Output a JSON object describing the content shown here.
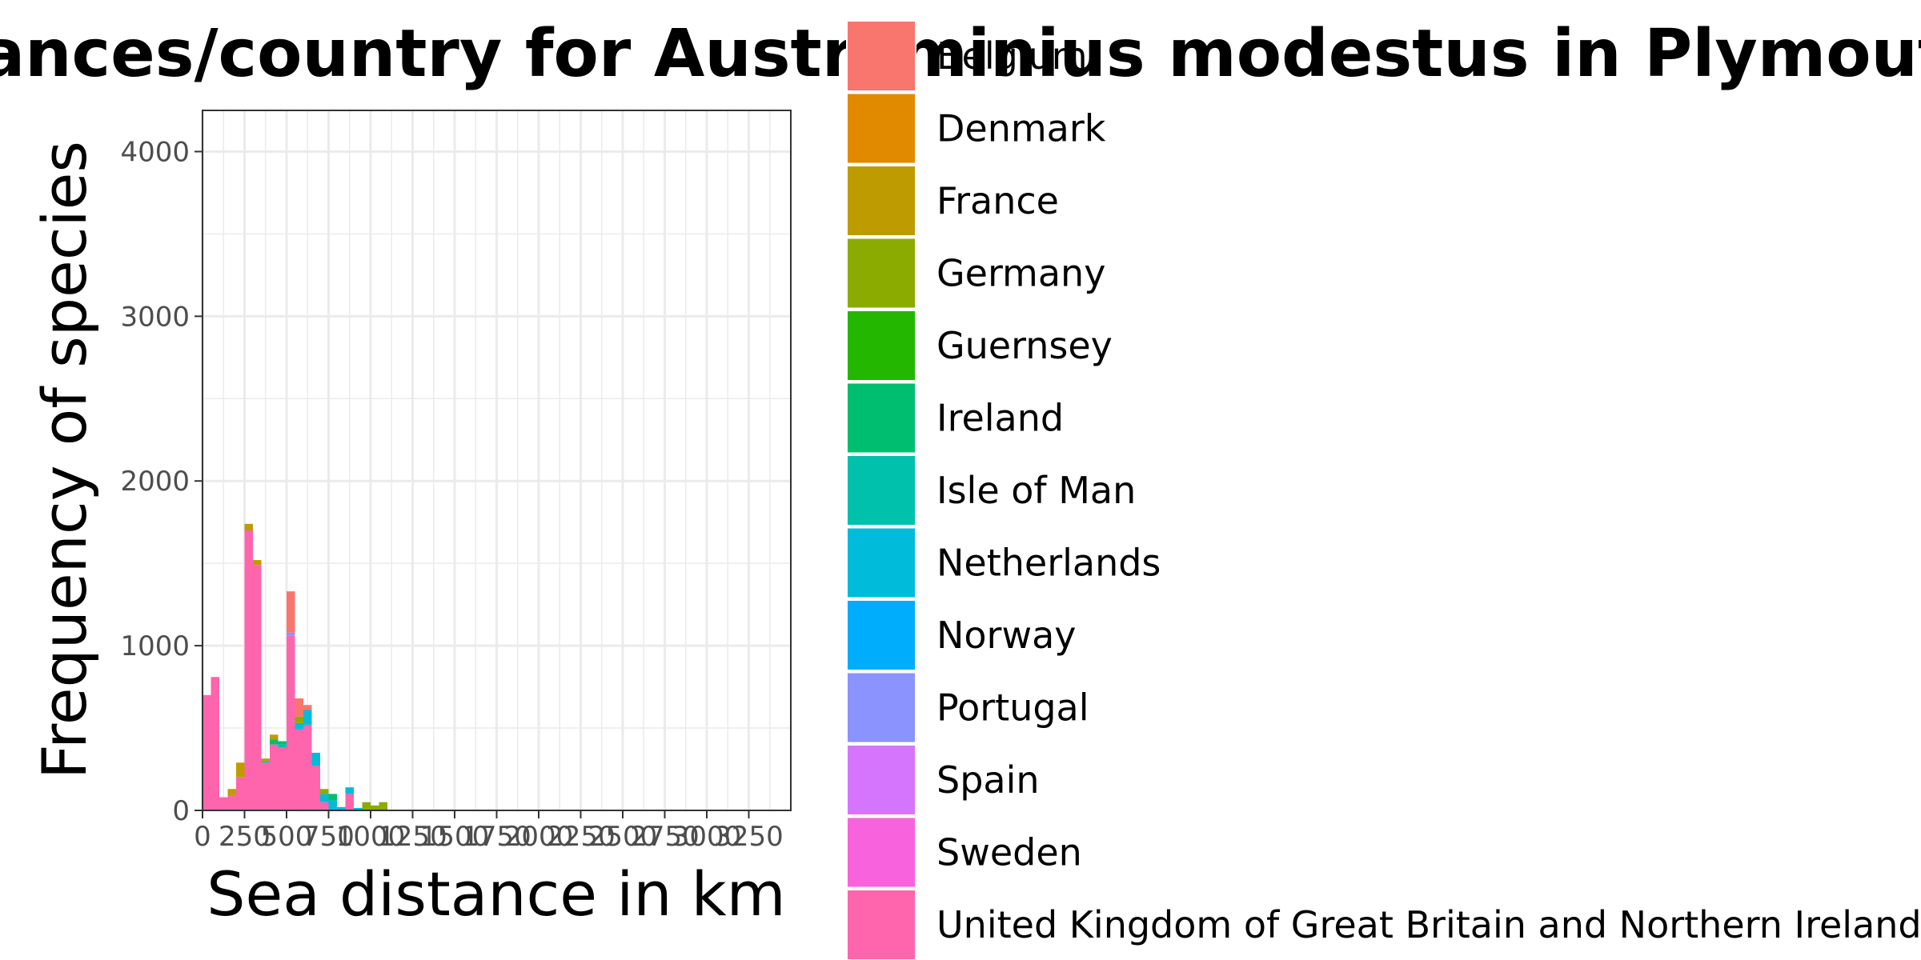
{
  "chart_data": {
    "type": "bar",
    "stacked": true,
    "title": "Sea distances/country for Austrominius modestus in Plymouth",
    "xlabel": "Sea distance in km",
    "ylabel": "Frequency of species",
    "xlim": [
      0,
      3500
    ],
    "ylim": [
      0,
      4250
    ],
    "x_ticks": [
      "0",
      "250",
      "500",
      "750",
      "1000",
      "1250",
      "1500",
      "1750",
      "2000",
      "2250",
      "2500",
      "2750",
      "3000",
      "3250"
    ],
    "y_ticks": [
      "0",
      "1000",
      "2000",
      "3000",
      "4000"
    ],
    "grid": true,
    "legend_position": "right",
    "bin_width": 50,
    "legend": [
      {
        "name": "Belgium",
        "color": "#F8766D"
      },
      {
        "name": "Denmark",
        "color": "#E18A00"
      },
      {
        "name": "France",
        "color": "#BE9C00"
      },
      {
        "name": "Germany",
        "color": "#8CAB00"
      },
      {
        "name": "Guernsey",
        "color": "#24B700"
      },
      {
        "name": "Ireland",
        "color": "#00BE70"
      },
      {
        "name": "Isle of Man",
        "color": "#00C1AB"
      },
      {
        "name": "Netherlands",
        "color": "#00BBDA"
      },
      {
        "name": "Norway",
        "color": "#00ACFC"
      },
      {
        "name": "Portugal",
        "color": "#8B93FF"
      },
      {
        "name": "Spain",
        "color": "#D575FE"
      },
      {
        "name": "Sweden",
        "color": "#F962DD"
      },
      {
        "name": "United Kingdom of Great Britain and Northern Ireland",
        "color": "#FF65AC"
      }
    ],
    "bins": [
      {
        "x": 0,
        "segments": [
          {
            "country": "United Kingdom of Great Britain and Northern Ireland",
            "value": 700
          }
        ]
      },
      {
        "x": 50,
        "segments": [
          {
            "country": "United Kingdom of Great Britain and Northern Ireland",
            "value": 810
          }
        ]
      },
      {
        "x": 100,
        "segments": [
          {
            "country": "United Kingdom of Great Britain and Northern Ireland",
            "value": 80
          }
        ]
      },
      {
        "x": 150,
        "segments": [
          {
            "country": "United Kingdom of Great Britain and Northern Ireland",
            "value": 90
          },
          {
            "country": "France",
            "value": 40
          }
        ]
      },
      {
        "x": 200,
        "segments": [
          {
            "country": "United Kingdom of Great Britain and Northern Ireland",
            "value": 200
          },
          {
            "country": "France",
            "value": 90
          }
        ]
      },
      {
        "x": 250,
        "segments": [
          {
            "country": "United Kingdom of Great Britain and Northern Ireland",
            "value": 1700
          },
          {
            "country": "France",
            "value": 40
          }
        ]
      },
      {
        "x": 300,
        "segments": [
          {
            "country": "United Kingdom of Great Britain and Northern Ireland",
            "value": 1490
          },
          {
            "country": "France",
            "value": 30
          }
        ]
      },
      {
        "x": 350,
        "segments": [
          {
            "country": "United Kingdom of Great Britain and Northern Ireland",
            "value": 290
          },
          {
            "country": "Isle of Man",
            "value": 10
          },
          {
            "country": "France",
            "value": 15
          }
        ]
      },
      {
        "x": 400,
        "segments": [
          {
            "country": "United Kingdom of Great Britain and Northern Ireland",
            "value": 400
          },
          {
            "country": "Ireland",
            "value": 30
          },
          {
            "country": "France",
            "value": 30
          }
        ]
      },
      {
        "x": 450,
        "segments": [
          {
            "country": "United Kingdom of Great Britain and Northern Ireland",
            "value": 380
          },
          {
            "country": "Isle of Man",
            "value": 20
          },
          {
            "country": "Ireland",
            "value": 20
          }
        ]
      },
      {
        "x": 500,
        "segments": [
          {
            "country": "United Kingdom of Great Britain and Northern Ireland",
            "value": 1060
          },
          {
            "country": "Portugal",
            "value": 20
          },
          {
            "country": "Belgium",
            "value": 250
          }
        ]
      },
      {
        "x": 550,
        "segments": [
          {
            "country": "United Kingdom of Great Britain and Northern Ireland",
            "value": 490
          },
          {
            "country": "Netherlands",
            "value": 40
          },
          {
            "country": "Germany",
            "value": 40
          },
          {
            "country": "Belgium",
            "value": 110
          }
        ]
      },
      {
        "x": 600,
        "segments": [
          {
            "country": "United Kingdom of Great Britain and Northern Ireland",
            "value": 520
          },
          {
            "country": "Netherlands",
            "value": 90
          },
          {
            "country": "Belgium",
            "value": 30
          }
        ]
      },
      {
        "x": 650,
        "segments": [
          {
            "country": "United Kingdom of Great Britain and Northern Ireland",
            "value": 270
          },
          {
            "country": "Netherlands",
            "value": 80
          }
        ]
      },
      {
        "x": 700,
        "segments": [
          {
            "country": "United Kingdom of Great Britain and Northern Ireland",
            "value": 50
          },
          {
            "country": "Netherlands",
            "value": 50
          },
          {
            "country": "Germany",
            "value": 30
          }
        ]
      },
      {
        "x": 750,
        "segments": [
          {
            "country": "Netherlands",
            "value": 60
          },
          {
            "country": "Ireland",
            "value": 40
          }
        ]
      },
      {
        "x": 800,
        "segments": [
          {
            "country": "Netherlands",
            "value": 20
          }
        ]
      },
      {
        "x": 850,
        "segments": [
          {
            "country": "United Kingdom of Great Britain and Northern Ireland",
            "value": 100
          },
          {
            "country": "Netherlands",
            "value": 40
          }
        ]
      },
      {
        "x": 900,
        "segments": [
          {
            "country": "Netherlands",
            "value": 15
          }
        ]
      },
      {
        "x": 950,
        "segments": [
          {
            "country": "Germany",
            "value": 50
          }
        ]
      },
      {
        "x": 1000,
        "segments": [
          {
            "country": "Germany",
            "value": 30
          }
        ]
      },
      {
        "x": 1050,
        "segments": [
          {
            "country": "Germany",
            "value": 50
          }
        ]
      }
    ]
  }
}
